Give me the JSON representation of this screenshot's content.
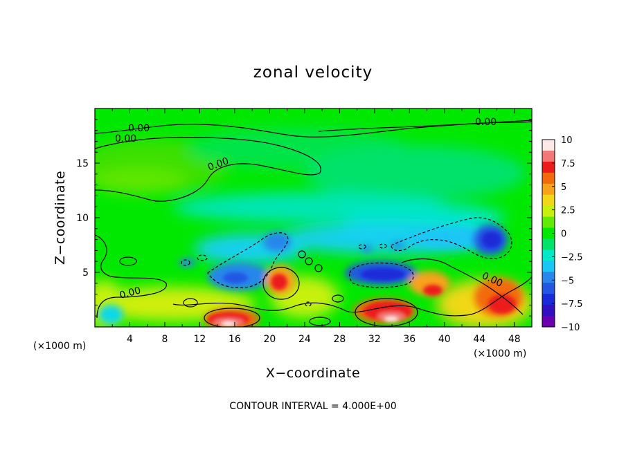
{
  "chart_data": {
    "type": "heatmap",
    "title": "zonal velocity",
    "xlabel": "X−coordinate",
    "ylabel": "Z−coordinate",
    "x_unit_label": "(×1000 m)",
    "y_unit_label": "(×1000 m)",
    "xlim": [
      0,
      50
    ],
    "ylim": [
      0,
      20
    ],
    "x_ticks": [
      4,
      8,
      12,
      16,
      20,
      24,
      28,
      32,
      36,
      40,
      44,
      48
    ],
    "y_ticks": [
      5,
      10,
      15
    ],
    "colorbar": {
      "min": -10,
      "max": 10,
      "tick_values": [
        10,
        7.5,
        5,
        2.5,
        0,
        -2.5,
        -5,
        -7.5,
        -10
      ],
      "tick_labels": [
        "10",
        "7.5",
        "5",
        "2.5",
        "0",
        "−2.5",
        "−5",
        "−7.5",
        "−10"
      ],
      "colors": [
        "#fde8e8",
        "#f27878",
        "#ec1c1c",
        "#f26a0c",
        "#f7a21a",
        "#f0d818",
        "#c8f00e",
        "#62ea06",
        "#00e800",
        "#00e26a",
        "#00e8c8",
        "#1cc6f4",
        "#2886ec",
        "#2456e4",
        "#1a2ad8",
        "#3010c0",
        "#6a00b0"
      ]
    },
    "contour_labels": [
      "0.00",
      "0.00",
      "0.00",
      "0.00",
      "0.00",
      "0.00"
    ],
    "features": [
      {
        "x": 17,
        "z": 0.4,
        "value": 9.5
      },
      {
        "x": 33.5,
        "z": 0.8,
        "value": 9.5
      },
      {
        "x": 21,
        "z": 3.8,
        "value": 6.5
      },
      {
        "x": 45,
        "z": 2,
        "value": 5.5
      },
      {
        "x": 40,
        "z": 3,
        "value": 5
      },
      {
        "x": 32,
        "z": 4.8,
        "value": -6
      },
      {
        "x": 45.5,
        "z": 8,
        "value": -7
      },
      {
        "x": 18,
        "z": 4.5,
        "value": -4.5
      },
      {
        "x": 21,
        "z": 8,
        "value": -4
      },
      {
        "x": 15,
        "z": 13.5,
        "value": 1
      },
      {
        "x": 25,
        "z": 17.5,
        "value": -1
      }
    ],
    "footer": "CONTOUR INTERVAL = 4.000E+00"
  }
}
